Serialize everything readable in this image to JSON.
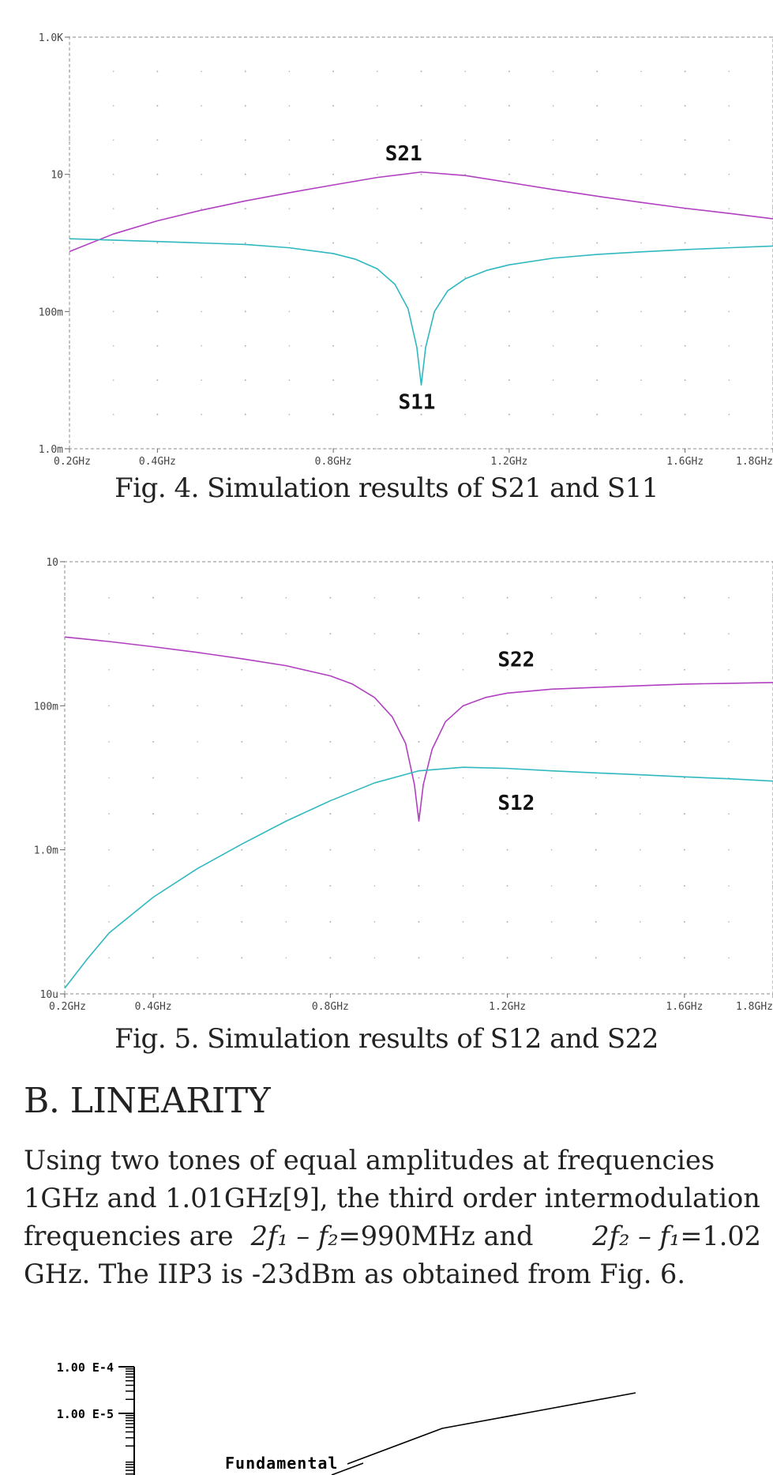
{
  "figures": [
    {
      "caption": "Fig. 4. Simulation results of S21 and S11",
      "chart_data": {
        "type": "line",
        "title": "",
        "xlabel": "",
        "ylabel": "",
        "x_scale": "linear",
        "y_scale": "log",
        "xlim": [
          0.2,
          1.8
        ],
        "ylim": [
          0.001,
          1000
        ],
        "x_ticks": [
          0.2,
          0.4,
          0.8,
          1.2,
          1.6,
          1.8
        ],
        "x_tick_labels": [
          "0.2GHz",
          "0.4GHz",
          "0.8GHz",
          "1.2GHz",
          "1.6GHz",
          "1.8GHz"
        ],
        "y_ticks": [
          0.001,
          0.1,
          10,
          1000
        ],
        "y_tick_labels": [
          "1.0m",
          "100m",
          "10",
          "1.0K"
        ],
        "grid": "dotted",
        "series": [
          {
            "name": "S21",
            "color": "#b040c0",
            "x": [
              0.2,
              0.3,
              0.4,
              0.5,
              0.6,
              0.7,
              0.8,
              0.9,
              1.0,
              1.1,
              1.2,
              1.3,
              1.4,
              1.5,
              1.6,
              1.7,
              1.8
            ],
            "y": [
              0.75,
              1.35,
              2.1,
              3.0,
              4.1,
              5.4,
              7.0,
              9.0,
              10.8,
              9.6,
              7.6,
              6.0,
              4.8,
              3.9,
              3.2,
              2.7,
              2.25
            ]
          },
          {
            "name": "S11",
            "color": "#30b8c0",
            "x": [
              0.2,
              0.4,
              0.6,
              0.7,
              0.8,
              0.85,
              0.9,
              0.94,
              0.97,
              0.99,
              1.0,
              1.01,
              1.03,
              1.06,
              1.1,
              1.15,
              1.2,
              1.3,
              1.4,
              1.5,
              1.6,
              1.7,
              1.8
            ],
            "y": [
              1.15,
              1.05,
              0.95,
              0.85,
              0.7,
              0.58,
              0.42,
              0.25,
              0.11,
              0.03,
              0.0085,
              0.03,
              0.1,
              0.2,
              0.3,
              0.4,
              0.48,
              0.6,
              0.68,
              0.74,
              0.8,
              0.85,
              0.9
            ]
          }
        ],
        "annotations": [
          {
            "text": "S21",
            "x": 0.96,
            "y": 16
          },
          {
            "text": "S11",
            "x": 0.99,
            "y": 0.0038
          }
        ]
      }
    },
    {
      "caption": "Fig. 5. Simulation results of S12 and S22",
      "chart_data": {
        "type": "line",
        "title": "",
        "xlabel": "",
        "ylabel": "",
        "x_scale": "linear",
        "y_scale": "log",
        "xlim": [
          0.2,
          1.8
        ],
        "ylim": [
          1e-05,
          10
        ],
        "x_ticks": [
          0.2,
          0.4,
          0.8,
          1.2,
          1.6,
          1.8
        ],
        "x_tick_labels": [
          "0.2GHz",
          "0.4GHz",
          "0.8GHz",
          "1.2GHz",
          "1.6GHz",
          "1.8GHz"
        ],
        "y_ticks": [
          1e-05,
          0.001,
          0.1,
          10
        ],
        "y_tick_labels": [
          "10u",
          "1.0m",
          "100m",
          "10"
        ],
        "grid": "dotted",
        "series": [
          {
            "name": "S22",
            "color": "#b040c0",
            "x": [
              0.2,
              0.3,
              0.4,
              0.5,
              0.6,
              0.7,
              0.8,
              0.85,
              0.9,
              0.94,
              0.97,
              0.99,
              1.0,
              1.01,
              1.03,
              1.06,
              1.1,
              1.15,
              1.2,
              1.3,
              1.4,
              1.5,
              1.6,
              1.7,
              1.8
            ],
            "y": [
              0.9,
              0.78,
              0.66,
              0.55,
              0.45,
              0.36,
              0.26,
              0.2,
              0.13,
              0.07,
              0.03,
              0.008,
              0.0025,
              0.008,
              0.025,
              0.06,
              0.1,
              0.13,
              0.15,
              0.17,
              0.18,
              0.19,
              0.2,
              0.205,
              0.21
            ]
          },
          {
            "name": "S12",
            "color": "#30b8c0",
            "x": [
              0.2,
              0.25,
              0.3,
              0.4,
              0.5,
              0.6,
              0.7,
              0.8,
              0.9,
              1.0,
              1.1,
              1.2,
              1.3,
              1.4,
              1.5,
              1.6,
              1.7,
              1.8
            ],
            "y": [
              1.2e-05,
              3e-05,
              7e-05,
              0.00022,
              0.00055,
              0.0012,
              0.0025,
              0.0048,
              0.0085,
              0.0125,
              0.014,
              0.0135,
              0.0125,
              0.0117,
              0.011,
              0.0103,
              0.0097,
              0.009
            ]
          }
        ],
        "annotations": [
          {
            "text": "S22",
            "x": 1.22,
            "y": 0.35
          },
          {
            "text": "S12",
            "x": 1.22,
            "y": 0.0036
          }
        ]
      }
    },
    {
      "chart_data": {
        "type": "line",
        "title": "",
        "xlabel": "",
        "ylabel": "",
        "y_scale": "log",
        "y_tick_labels": [
          "1.00 E-4",
          "1.00 E-5"
        ],
        "series": [
          {
            "name": "Fundamental",
            "color": "#000000"
          }
        ],
        "annotations": [
          {
            "text": "Fundamental"
          }
        ]
      }
    }
  ],
  "section": {
    "heading": "B. LINEARITY",
    "paragraph": {
      "line1": "Using two tones of equal amplitudes at frequencies",
      "line2": "1GHz and 1.01GHz[9], the third order intermodulation",
      "line3_a": "frequencies are",
      "eq1": "2f₁ – f₂",
      "val1": "=990MHz and",
      "eq2": "2f₂ – f₁",
      "val2": "=1.02",
      "line4": "GHz. The IIP3 is -23dBm as obtained from Fig. 6."
    }
  }
}
